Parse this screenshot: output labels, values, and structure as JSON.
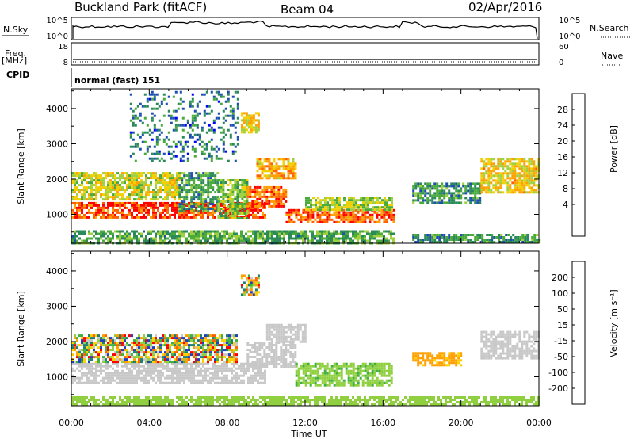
{
  "header": {
    "station": "Buckland Park (fitACF)",
    "beam": "Beam 04",
    "date": "02/Apr/2016"
  },
  "nsky_panel": {
    "left_label": "N.Sky",
    "right_label": "N.Search",
    "left_ticks": [
      "10^5",
      "10^0"
    ],
    "right_ticks": [
      "10^5",
      "10^0"
    ]
  },
  "freq_panel": {
    "left_label_line1": "Freq.",
    "left_label_line2": "[MHz]",
    "right_label": "Nave",
    "left_ticks": [
      "18",
      "8"
    ],
    "right_ticks": [
      "60",
      "0"
    ]
  },
  "cpid_panel": {
    "label": "CPID",
    "text": "normal (fast) 151"
  },
  "power_panel": {
    "ylabel": "Slant Range [km]",
    "yticks": [
      "4000",
      "3000",
      "2000",
      "1000"
    ],
    "colorbar_label": "Power [dB]",
    "colorbar_ticks": [
      "28",
      "24",
      "20",
      "16",
      "12",
      "8",
      "4"
    ],
    "colors": [
      "#0000ff",
      "#1e4fb0",
      "#2a8a5a",
      "#4aaa3a",
      "#a0d040",
      "#f0d000",
      "#ffa000",
      "#ff6000",
      "#ff0000"
    ]
  },
  "velocity_panel": {
    "ylabel": "Slant Range [km]",
    "yticks": [
      "4000",
      "3000",
      "2000",
      "1000"
    ],
    "colorbar_label": "Velocity [m s⁻¹]",
    "colorbar_ticks": [
      "200",
      "100",
      "50",
      "15",
      "-15",
      "-50",
      "-100",
      "-200"
    ],
    "colors": [
      "#2040c0",
      "#208070",
      "#40b040",
      "#90d040",
      "#c8c8c8",
      "#ffd000",
      "#ffa000",
      "#ff6000",
      "#ff0000"
    ]
  },
  "time_axis": {
    "xlabel": "Time UT",
    "ticks": [
      "00:00",
      "04:00",
      "08:00",
      "12:00",
      "16:00",
      "20:00",
      "00:00"
    ]
  },
  "chart_data": [
    {
      "type": "heatmap",
      "panel": "power",
      "xlabel": "Time UT",
      "ylabel": "Slant Range [km]",
      "xlim": [
        0,
        24
      ],
      "ylim": [
        180,
        4560
      ],
      "colorbar": "Power [dB]",
      "colorbar_range": [
        0,
        32
      ],
      "regions": [
        {
          "t0": 0.0,
          "t1": 10.0,
          "r0": 900,
          "r1": 1350,
          "p": 28
        },
        {
          "t0": 0.0,
          "t1": 5.5,
          "r0": 1400,
          "r1": 2200,
          "p": 18
        },
        {
          "t0": 5.5,
          "t1": 7.5,
          "r0": 1100,
          "r1": 2200,
          "p": 10
        },
        {
          "t0": 7.5,
          "t1": 9.0,
          "r0": 900,
          "r1": 2000,
          "p": 14
        },
        {
          "t0": 9.0,
          "t1": 11.0,
          "r0": 1200,
          "r1": 1800,
          "p": 26
        },
        {
          "t0": 9.5,
          "t1": 11.5,
          "r0": 2000,
          "r1": 2600,
          "p": 22
        },
        {
          "t0": 11.0,
          "t1": 16.5,
          "r0": 750,
          "r1": 1150,
          "p": 27
        },
        {
          "t0": 12.0,
          "t1": 16.5,
          "r0": 1150,
          "r1": 1500,
          "p": 16
        },
        {
          "t0": 8.7,
          "t1": 9.6,
          "r0": 3300,
          "r1": 3900,
          "p": 20
        },
        {
          "t0": 17.5,
          "t1": 21.0,
          "r0": 1300,
          "r1": 1900,
          "p": 10
        },
        {
          "t0": 21.0,
          "t1": 24.0,
          "r0": 1600,
          "r1": 2600,
          "p": 20
        },
        {
          "t0": 0.0,
          "t1": 16.5,
          "r0": 200,
          "r1": 550,
          "p": 12
        },
        {
          "t0": 17.5,
          "t1": 24.0,
          "r0": 200,
          "r1": 450,
          "p": 10
        },
        {
          "t0": 3.0,
          "t1": 8.5,
          "r0": 2500,
          "r1": 4500,
          "p": 8
        }
      ]
    },
    {
      "type": "heatmap",
      "panel": "velocity",
      "xlabel": "Time UT",
      "ylabel": "Slant Range [km]",
      "xlim": [
        0,
        24
      ],
      "ylim": [
        180,
        4560
      ],
      "colorbar": "Velocity [m s⁻¹]",
      "colorbar_range": [
        -250,
        250
      ],
      "regions": [
        {
          "t0": 0.0,
          "t1": 10.0,
          "r0": 800,
          "r1": 1400,
          "v": 0
        },
        {
          "t0": 0.0,
          "t1": 8.5,
          "r0": 1400,
          "r1": 2200,
          "v": 999
        },
        {
          "t0": 9.0,
          "t1": 11.5,
          "r0": 1300,
          "r1": 2000,
          "v": 0
        },
        {
          "t0": 10.0,
          "t1": 12.0,
          "r0": 2000,
          "r1": 2500,
          "v": 0
        },
        {
          "t0": 11.5,
          "t1": 16.5,
          "r0": 750,
          "r1": 1400,
          "v": 40
        },
        {
          "t0": 17.5,
          "t1": 20.0,
          "r0": 1300,
          "r1": 1700,
          "v": -60
        },
        {
          "t0": 21.0,
          "t1": 24.0,
          "r0": 1500,
          "r1": 2300,
          "v": 0
        },
        {
          "t0": 0.0,
          "t1": 24.0,
          "r0": 200,
          "r1": 450,
          "v": 30
        },
        {
          "t0": 8.7,
          "t1": 9.6,
          "r0": 3300,
          "r1": 3900,
          "v": 999
        }
      ]
    }
  ]
}
